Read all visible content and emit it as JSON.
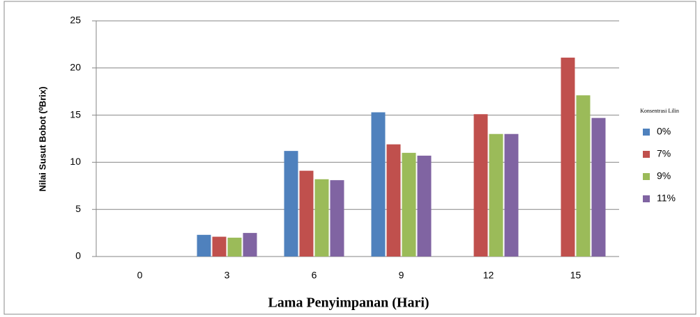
{
  "chart_data": {
    "type": "bar",
    "x_label": "Lama Penyimpanan (Hari)",
    "y_label": "Nilai Susut Bobot (⁰Brix)",
    "legend_title": "Konsentrasi Lilin",
    "categories": [
      "0",
      "3",
      "6",
      "9",
      "12",
      "15"
    ],
    "series": [
      {
        "name": "0%",
        "color": "#4f81bd",
        "values": [
          0,
          2.3,
          11.2,
          15.3,
          0,
          0
        ]
      },
      {
        "name": "7%",
        "color": "#c0504d",
        "values": [
          0,
          2.1,
          9.1,
          11.9,
          15.1,
          21.1
        ]
      },
      {
        "name": "9%",
        "color": "#9bbb59",
        "values": [
          0,
          2.0,
          8.2,
          11.0,
          13.0,
          17.1
        ]
      },
      {
        "name": "11%",
        "color": "#8064a2",
        "values": [
          0,
          2.5,
          8.1,
          10.7,
          13.0,
          14.7
        ]
      }
    ],
    "ylim": [
      0,
      25
    ],
    "yticks": [
      0,
      5,
      10,
      15,
      20,
      25
    ],
    "grid": true,
    "legend": "right"
  }
}
